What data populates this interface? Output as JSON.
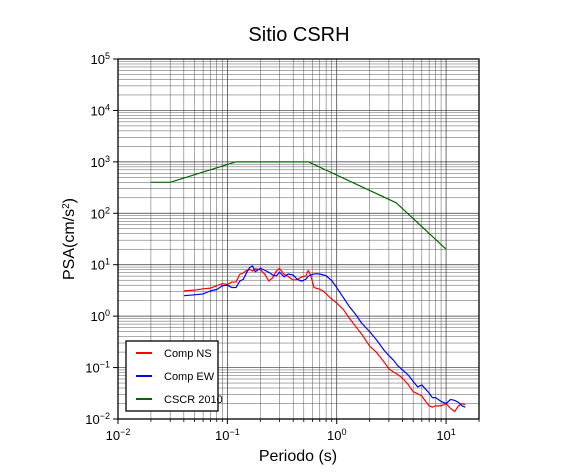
{
  "chart_data": {
    "type": "line",
    "title": "Sitio CSRH",
    "xlabel": "Periodo (s)",
    "ylabel_main": "PSA(cm/s",
    "ylabel_sup": "2",
    "ylabel_close": ")",
    "x_scale": "log",
    "y_scale": "log",
    "xlim": [
      0.01,
      20
    ],
    "ylim": [
      0.01,
      100000
    ],
    "x_ticks": [
      {
        "value": 0.01,
        "base": "10",
        "exp": "−2"
      },
      {
        "value": 0.1,
        "base": "10",
        "exp": "−1"
      },
      {
        "value": 1,
        "base": "10",
        "exp": "0"
      },
      {
        "value": 10,
        "base": "10",
        "exp": "1"
      }
    ],
    "y_ticks": [
      {
        "value": 0.01,
        "base": "10",
        "exp": "−2"
      },
      {
        "value": 0.1,
        "base": "10",
        "exp": "−1"
      },
      {
        "value": 1,
        "base": "10",
        "exp": "0"
      },
      {
        "value": 10,
        "base": "10",
        "exp": "1"
      },
      {
        "value": 100,
        "base": "10",
        "exp": "2"
      },
      {
        "value": 1000,
        "base": "10",
        "exp": "3"
      },
      {
        "value": 10000,
        "base": "10",
        "exp": "4"
      },
      {
        "value": 100000,
        "base": "10",
        "exp": "5"
      }
    ],
    "grid": true,
    "legend_position": "bottom-left",
    "series": [
      {
        "name": "Comp NS",
        "color": "#ff0000",
        "x": [
          0.04,
          0.05,
          0.06,
          0.07,
          0.08,
          0.09,
          0.1,
          0.11,
          0.12,
          0.13,
          0.14,
          0.15,
          0.16,
          0.17,
          0.18,
          0.2,
          0.22,
          0.24,
          0.26,
          0.28,
          0.3,
          0.33,
          0.36,
          0.4,
          0.44,
          0.48,
          0.52,
          0.55,
          0.58,
          0.62,
          0.68,
          0.75,
          0.85,
          1.0,
          1.15,
          1.3,
          1.5,
          1.7,
          2.0,
          2.3,
          2.7,
          3.0,
          3.3,
          3.6,
          4.0,
          4.5,
          5.0,
          5.5,
          6.0,
          6.5,
          7.0,
          7.5,
          8.0,
          9.0,
          10.0,
          11.0,
          12.0,
          13.0,
          14.0,
          15.0
        ],
        "y": [
          3.1,
          3.2,
          3.4,
          3.5,
          3.9,
          4.3,
          4.1,
          4.6,
          4.6,
          6.5,
          6.9,
          7.8,
          8.1,
          7.5,
          8.3,
          8.0,
          6.5,
          4.8,
          5.6,
          7.5,
          8.5,
          6.5,
          5.9,
          5.0,
          5.2,
          5.8,
          6.0,
          7.7,
          6.1,
          3.6,
          3.4,
          3.1,
          2.4,
          1.8,
          1.35,
          0.92,
          0.62,
          0.44,
          0.26,
          0.2,
          0.13,
          0.095,
          0.082,
          0.074,
          0.062,
          0.047,
          0.034,
          0.031,
          0.028,
          0.022,
          0.018,
          0.017,
          0.018,
          0.018,
          0.02,
          0.016,
          0.014,
          0.018,
          0.02,
          0.019
        ]
      },
      {
        "name": "Comp EW",
        "color": "#0000ff",
        "x": [
          0.04,
          0.05,
          0.06,
          0.07,
          0.08,
          0.09,
          0.1,
          0.11,
          0.12,
          0.13,
          0.14,
          0.15,
          0.16,
          0.17,
          0.18,
          0.2,
          0.22,
          0.24,
          0.26,
          0.28,
          0.3,
          0.33,
          0.36,
          0.4,
          0.44,
          0.48,
          0.52,
          0.55,
          0.6,
          0.65,
          0.7,
          0.8,
          0.9,
          1.0,
          1.15,
          1.3,
          1.5,
          1.7,
          2.0,
          2.3,
          2.7,
          3.0,
          3.3,
          3.6,
          4.0,
          4.5,
          5.0,
          5.5,
          6.0,
          6.5,
          7.0,
          7.5,
          8.0,
          9.0,
          10.0,
          11.0,
          12.0,
          13.0,
          14.0,
          15.0
        ],
        "y": [
          2.5,
          2.6,
          2.7,
          3.1,
          3.3,
          3.9,
          4.0,
          3.6,
          3.6,
          4.8,
          5.2,
          7.0,
          8.8,
          9.5,
          7.3,
          8.5,
          7.8,
          7.1,
          6.3,
          6.0,
          7.2,
          5.8,
          6.6,
          6.3,
          5.1,
          4.8,
          5.2,
          6.0,
          6.5,
          6.7,
          6.6,
          6.1,
          4.9,
          3.6,
          2.3,
          1.55,
          1.06,
          0.72,
          0.5,
          0.35,
          0.22,
          0.17,
          0.14,
          0.11,
          0.09,
          0.072,
          0.054,
          0.042,
          0.046,
          0.038,
          0.032,
          0.026,
          0.026,
          0.022,
          0.02,
          0.024,
          0.023,
          0.021,
          0.018,
          0.017
        ]
      },
      {
        "name": "CSCR 2010",
        "color": "#006600",
        "x": [
          0.02,
          0.03,
          0.12,
          0.55,
          3.5,
          10
        ],
        "y": [
          400,
          400,
          1000,
          1000,
          160,
          20
        ]
      }
    ]
  }
}
